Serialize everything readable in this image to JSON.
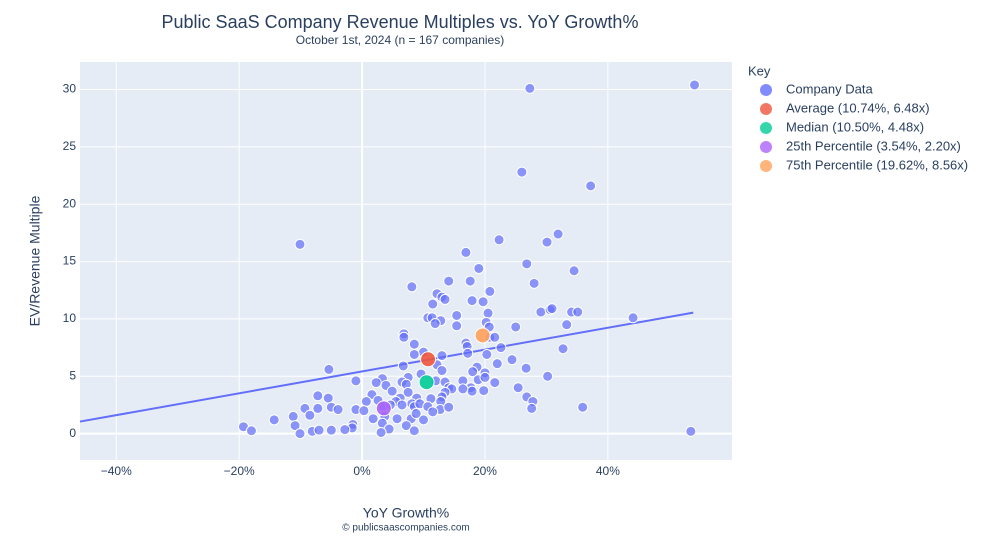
{
  "chart_data": {
    "type": "scatter",
    "title": "Public SaaS Company Revenue Multiples vs. YoY Growth%",
    "subtitle": "October 1st, 2024 (n = 167 companies)",
    "x_label": "YoY Growth%",
    "y_label": "EV/Revenue Multiple",
    "footer": "© publicsaascompanies.com",
    "legend_title": "Key",
    "xlim": [
      -45.9,
      60.2
    ],
    "ylim": [
      -2.3,
      32.4
    ],
    "xticks": [
      {
        "value": -40,
        "label": "−40%"
      },
      {
        "value": -20,
        "label": "−20%"
      },
      {
        "value": 0,
        "label": "0%"
      },
      {
        "value": 20,
        "label": "20%"
      },
      {
        "value": 40,
        "label": "40%"
      }
    ],
    "yticks": [
      0,
      5,
      10,
      15,
      20,
      25,
      30
    ],
    "grid": true,
    "trendline": {
      "color": "#636efa",
      "x": [
        -45.9,
        53.9
      ],
      "values": [
        1.05,
        10.55
      ]
    },
    "series": [
      {
        "name": "Company Data",
        "color": "#636efa",
        "x": [
          54.1,
          27.3,
          26.0,
          37.2,
          -10.1,
          22.3,
          31.9,
          30.1,
          16.9,
          26.8,
          19.0,
          34.5,
          17.6,
          14.1,
          28.0,
          8.1,
          12.2,
          20.8,
          13.0,
          13.5,
          17.9,
          19.7,
          11.5,
          29.1,
          30.6,
          30.9,
          34.1,
          35.1,
          20.5,
          15.4,
          10.7,
          11.4,
          12.8,
          11.9,
          15.4,
          20.2,
          20.7,
          25.0,
          33.3,
          44.1,
          6.8,
          6.8,
          20.8,
          21.6,
          16.9,
          17.1,
          22.6,
          32.7,
          8.5,
          10.0,
          8.5,
          13.0,
          17.2,
          20.3,
          24.4,
          12.2,
          18.7,
          6.7,
          22.0,
          -5.4,
          26.7,
          9.6,
          13.0,
          18.0,
          20.0,
          7.5,
          3.3,
          -1.0,
          2.3,
          6.5,
          12.0,
          13.5,
          16.4,
          18.9,
          20.0,
          21.6,
          7.2,
          3.9,
          17.7,
          17.9,
          14.1,
          14.6,
          16.4,
          19.8,
          25.4,
          30.2,
          7.5,
          4.9,
          1.6,
          -7.2,
          -5.5,
          13.5,
          13.0,
          26.8,
          27.8,
          6.2,
          8.9,
          11.2,
          8.1,
          5.5,
          2.6,
          0.7,
          12.8,
          -9.3,
          -7.2,
          -5.0,
          -3.9,
          -1.0,
          3.4,
          4.6,
          6.5,
          8.5,
          9.4,
          10.7,
          12.7,
          14.1,
          27.6,
          35.9,
          0.3,
          -11.2,
          -8.5,
          -14.3,
          1.8,
          3.7,
          5.7,
          8.0,
          10.0,
          11.5,
          8.8,
          -10.9,
          -1.5,
          3.3,
          7.2,
          4.4,
          -1.6,
          -19.3,
          -18.0,
          -10.1,
          -8.1,
          -7.0,
          -5.0,
          -2.8,
          3.1,
          8.5,
          53.5
        ],
        "values": [
          30.4,
          30.1,
          22.8,
          21.6,
          16.5,
          16.9,
          17.4,
          16.7,
          15.8,
          14.8,
          14.4,
          14.2,
          13.3,
          13.3,
          13.1,
          12.8,
          12.2,
          12.4,
          11.9,
          11.7,
          11.6,
          11.5,
          11.3,
          10.6,
          10.8,
          10.9,
          10.6,
          10.6,
          10.5,
          10.3,
          10.1,
          10.1,
          9.85,
          9.6,
          9.4,
          9.7,
          9.3,
          9.3,
          9.5,
          10.1,
          8.7,
          8.4,
          8.4,
          8.4,
          7.9,
          7.6,
          7.5,
          7.4,
          7.8,
          7.1,
          6.9,
          6.8,
          7.0,
          6.9,
          6.45,
          6.0,
          5.8,
          5.9,
          6.1,
          5.6,
          5.7,
          5.2,
          5.5,
          5.4,
          5.3,
          4.9,
          4.8,
          4.6,
          4.45,
          4.5,
          4.6,
          4.5,
          4.6,
          4.7,
          4.9,
          4.45,
          4.3,
          4.2,
          4.0,
          3.7,
          4.0,
          3.9,
          3.9,
          3.75,
          4.0,
          5.0,
          3.6,
          3.7,
          3.4,
          3.3,
          3.1,
          3.6,
          3.2,
          3.2,
          2.8,
          3.1,
          3.1,
          3.05,
          2.6,
          2.8,
          2.9,
          2.8,
          2.8,
          2.2,
          2.2,
          2.3,
          2.1,
          2.1,
          2.4,
          2.5,
          2.5,
          2.35,
          2.6,
          2.35,
          2.1,
          2.3,
          2.2,
          2.3,
          2.0,
          1.5,
          1.6,
          1.2,
          1.3,
          1.5,
          1.3,
          1.3,
          1.2,
          1.9,
          1.75,
          0.7,
          0.8,
          0.9,
          0.7,
          0.4,
          0.5,
          0.6,
          0.25,
          0.0,
          0.2,
          0.3,
          0.3,
          0.35,
          0.1,
          0.25,
          0.2
        ]
      },
      {
        "name": "Average (10.74%, 6.48x)",
        "color": "#ef553b",
        "x": [
          10.74
        ],
        "values": [
          6.48
        ]
      },
      {
        "name": "Median (10.50%, 4.48x)",
        "color": "#00cc96",
        "x": [
          10.5
        ],
        "values": [
          4.48
        ]
      },
      {
        "name": "25th Percentile (3.54%, 2.20x)",
        "color": "#ab63fa",
        "x": [
          3.54
        ],
        "values": [
          2.2
        ]
      },
      {
        "name": "75th Percentile (19.62%, 8.56x)",
        "color": "#ffa15a",
        "x": [
          19.62
        ],
        "values": [
          8.56
        ]
      }
    ]
  }
}
